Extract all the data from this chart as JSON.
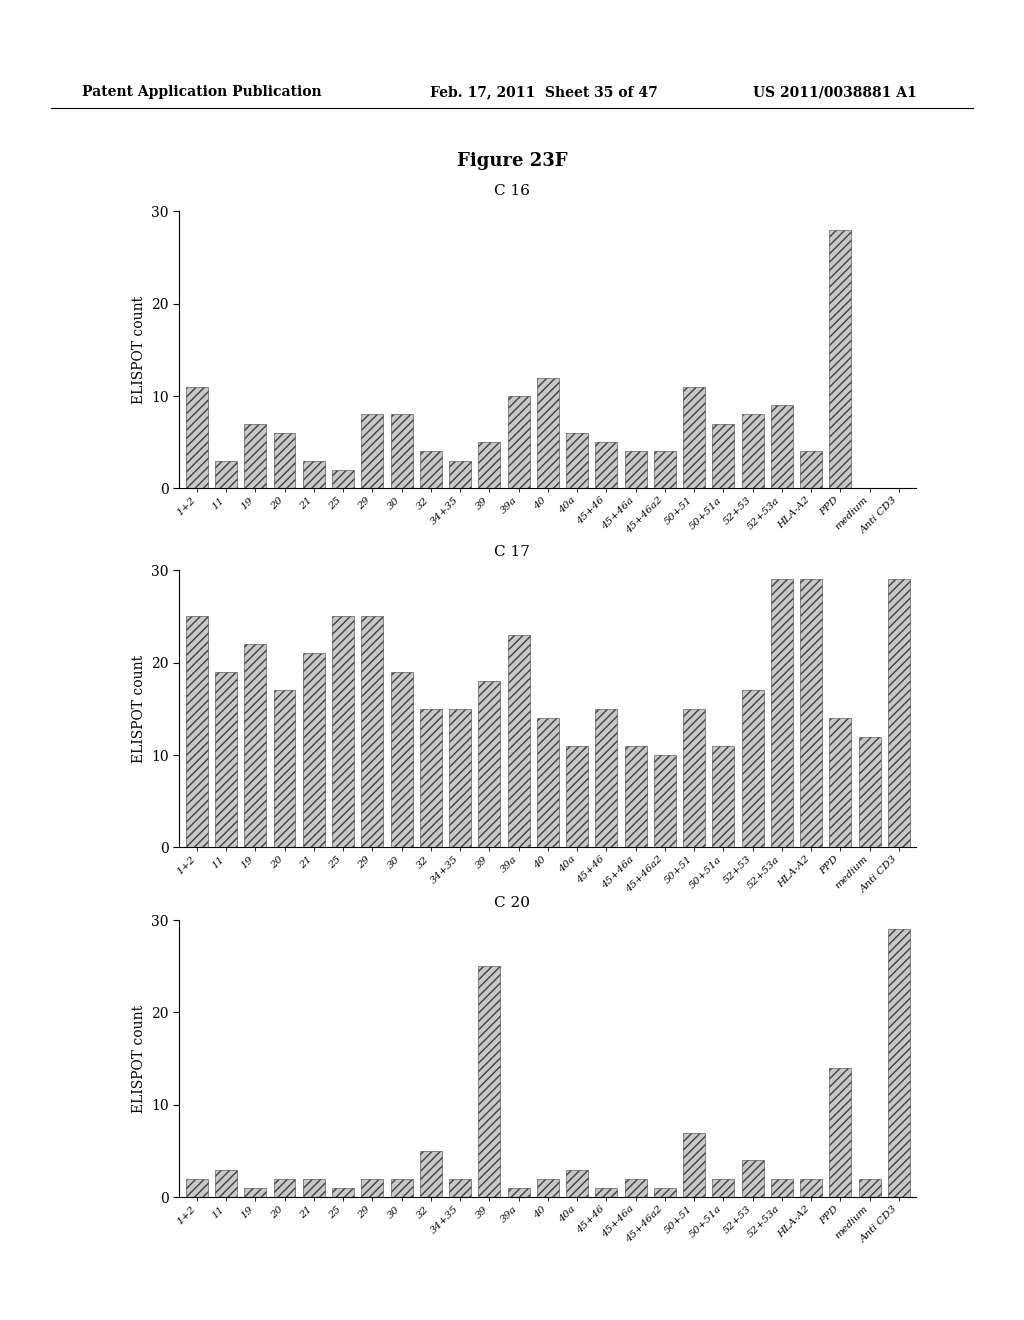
{
  "figure_title": "Figure 23F",
  "header_left": "Patent Application Publication",
  "header_mid": "Feb. 17, 2011  Sheet 35 of 47",
  "header_right": "US 2011/0038881 A1",
  "charts": [
    {
      "title": "C 16",
      "ylabel": "ELISPOT count",
      "ylim": [
        0,
        30
      ],
      "yticks": [
        0,
        10,
        20,
        30
      ],
      "categories": [
        "1+2",
        "11",
        "19",
        "20",
        "21",
        "25",
        "29",
        "30",
        "32",
        "34+35",
        "39",
        "39a",
        "40",
        "40a",
        "45+46",
        "45+46a",
        "45+46a2",
        "50+51",
        "50+51a",
        "52+53",
        "52+53a",
        "HLA-A2",
        "PPD",
        "medium",
        "Anti CD3"
      ],
      "values": [
        11,
        3,
        7,
        6,
        3,
        2,
        8,
        8,
        4,
        3,
        5,
        10,
        12,
        6,
        5,
        4,
        4,
        11,
        7,
        8,
        9,
        4,
        28,
        0,
        0
      ]
    },
    {
      "title": "C 17",
      "ylabel": "ELISPOT count",
      "ylim": [
        0,
        30
      ],
      "yticks": [
        0,
        10,
        20,
        30
      ],
      "categories": [
        "1+2",
        "11",
        "19",
        "20",
        "21",
        "25",
        "29",
        "30",
        "32",
        "34+35",
        "39",
        "39a",
        "40",
        "40a",
        "45+46",
        "45+46a",
        "45+46a2",
        "50+51",
        "50+51a",
        "52+53",
        "52+53a",
        "HLA-A2",
        "PPD",
        "medium",
        "Anti CD3"
      ],
      "values": [
        25,
        19,
        22,
        17,
        21,
        25,
        25,
        19,
        15,
        15,
        18,
        23,
        14,
        11,
        15,
        11,
        10,
        15,
        11,
        17,
        29,
        29,
        14,
        12,
        29
      ]
    },
    {
      "title": "C 20",
      "ylabel": "ELISPOT count",
      "ylim": [
        0,
        30
      ],
      "yticks": [
        0,
        10,
        20,
        30
      ],
      "categories": [
        "1+2",
        "11",
        "19",
        "20",
        "21",
        "25",
        "29",
        "30",
        "32",
        "34+35",
        "39",
        "39a",
        "40",
        "40a",
        "45+46",
        "45+46a",
        "45+46a2",
        "50+51",
        "50+51a",
        "52+53",
        "52+53a",
        "HLA-A2",
        "PPD",
        "medium",
        "Anti CD3"
      ],
      "values": [
        2,
        3,
        1,
        2,
        2,
        1,
        2,
        2,
        5,
        2,
        25,
        1,
        2,
        3,
        1,
        2,
        1,
        7,
        2,
        4,
        2,
        2,
        14,
        2,
        29
      ]
    }
  ],
  "bar_facecolor": "#c8c8c8",
  "bar_hatch": "////",
  "bar_edge_color": "#404040",
  "bar_linewidth": 0.4
}
